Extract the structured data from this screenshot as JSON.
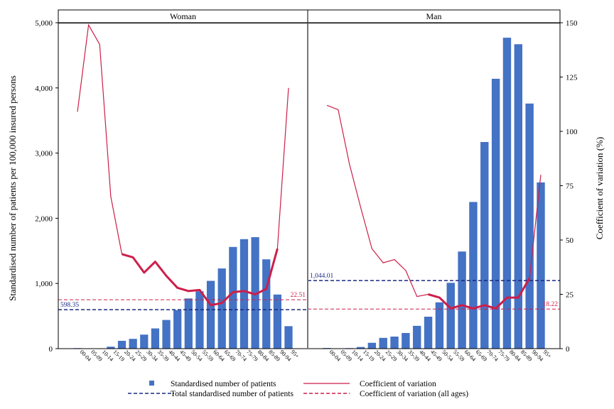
{
  "chart_data": {
    "type": "bar",
    "panels": [
      "Woman",
      "Man"
    ],
    "categories": [
      "00-04",
      "05-09",
      "10-14",
      "15-19",
      "20-24",
      "25-29",
      "30-34",
      "35-39",
      "40-44",
      "45-49",
      "50-54",
      "55-59",
      "60-64",
      "65-69",
      "70-74",
      "75-79",
      "80-84",
      "85-89",
      "90-94",
      "95+"
    ],
    "ylabel": "Standardised number of patients per 100,000 insured persons",
    "y2label": "Coefficient of variation (%)",
    "ylim": [
      0,
      5000
    ],
    "y2lim": [
      0,
      150
    ],
    "yticks": [
      "0",
      "1,000",
      "2,000",
      "3,000",
      "4,000",
      "5,000"
    ],
    "y2ticks": [
      "0",
      "25",
      "50",
      "75",
      "100",
      "125",
      "150"
    ],
    "series": [
      {
        "name": "Standardised number of patients",
        "type": "bar",
        "axis": "left",
        "color": "#4472c4",
        "Woman": [
          8,
          5,
          5,
          30,
          120,
          150,
          215,
          310,
          440,
          590,
          770,
          880,
          1040,
          1230,
          1560,
          1680,
          1710,
          1370,
          830,
          345
        ],
        "Man": [
          10,
          5,
          8,
          25,
          90,
          165,
          185,
          240,
          350,
          490,
          710,
          1010,
          1490,
          2250,
          3170,
          4140,
          4770,
          4670,
          3760,
          2550
        ]
      },
      {
        "name": "Coefficient of variation",
        "type": "line",
        "axis": "right",
        "color": "#cc1f4a",
        "Woman": [
          109,
          149,
          140,
          70,
          43.5,
          42,
          35,
          40,
          33.5,
          28,
          26.5,
          27,
          20,
          21,
          26,
          26.5,
          25,
          27.5,
          46,
          120
        ],
        "Man": [
          112,
          110,
          85,
          65,
          46,
          39.5,
          41,
          36,
          24,
          25,
          23.5,
          18.5,
          20,
          18.5,
          20,
          18.5,
          23.5,
          23.5,
          32.5,
          80
        ],
        "bold_from": {
          "Woman": 4,
          "Man": 9
        }
      }
    ],
    "reference_lines": {
      "total_label": "Total standardised number of patients",
      "cv_all_label": "Coefficient of variation (all ages)",
      "Woman": {
        "total": 598.35,
        "total_text": "598.35",
        "cv_all": 22.51,
        "cv_all_text": "22.51"
      },
      "Man": {
        "total": 1044.01,
        "total_text": "1,044.01",
        "cv_all": 18.22,
        "cv_all_text": "18.22"
      }
    },
    "legend": [
      {
        "label": "Standardised number of patients",
        "kind": "square",
        "color": "#4472c4"
      },
      {
        "label": "Coefficient of variation",
        "kind": "line",
        "color": "#cc1f4a"
      },
      {
        "label": "Total standardised number of patients",
        "kind": "dash",
        "color": "#1a2a80"
      },
      {
        "label": "Coefficient of variation (all ages)",
        "kind": "dash",
        "color": "#cc1f4a"
      }
    ],
    "legend_position": "bottom",
    "grid": false
  }
}
